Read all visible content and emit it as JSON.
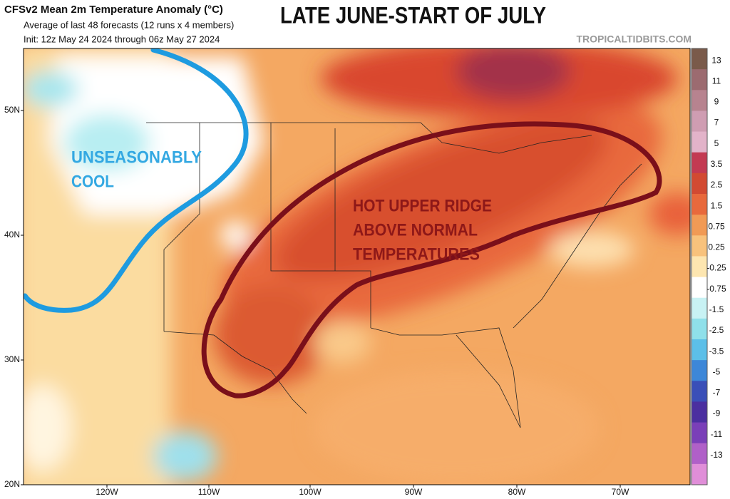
{
  "header": {
    "title": "CFSv2 Mean 2m Temperature Anomaly (°C)",
    "subtitle": "Average of last 48 forecasts (12 runs x 4 members)",
    "init": "Init: 12z May 24 2024 through 06z May 27 2024",
    "headline": "LATE JUNE-START OF JULY",
    "credit": "TROPICALTIDBITS.COM"
  },
  "map": {
    "annotations": [
      {
        "lines": [
          "UNSEASONABLY",
          "COOL"
        ]
      },
      {
        "lines": [
          "HOT UPPER RIDGE",
          "ABOVE NORMAL",
          "TEMPERATURES"
        ]
      }
    ],
    "lat_labels": [
      "50N",
      "40N",
      "30N",
      "20N"
    ],
    "lon_labels": [
      "120W",
      "110W",
      "100W",
      "90W",
      "80W",
      "70W"
    ]
  },
  "colorbar": {
    "labels": [
      "13",
      "11",
      "9",
      "7",
      "5",
      "3.5",
      "2.5",
      "1.5",
      "0.75",
      "0.25",
      "-0.25",
      "-0.75",
      "-1.5",
      "-2.5",
      "-3.5",
      "-5",
      "-7",
      "-9",
      "-11",
      "-13"
    ],
    "colors": [
      "#7a5a4a",
      "#9c6b70",
      "#b7838f",
      "#cf9db2",
      "#e2b3c9",
      "#c33a52",
      "#d24a32",
      "#e8693c",
      "#f19a55",
      "#f8c27c",
      "#fde6b0",
      "#ffffff",
      "#c8f2f4",
      "#8fe0ea",
      "#5cbfe8",
      "#3d87d8",
      "#3a4fb8",
      "#4b2fa0",
      "#7a3fb8",
      "#b060c8",
      "#e08ed8"
    ]
  }
}
